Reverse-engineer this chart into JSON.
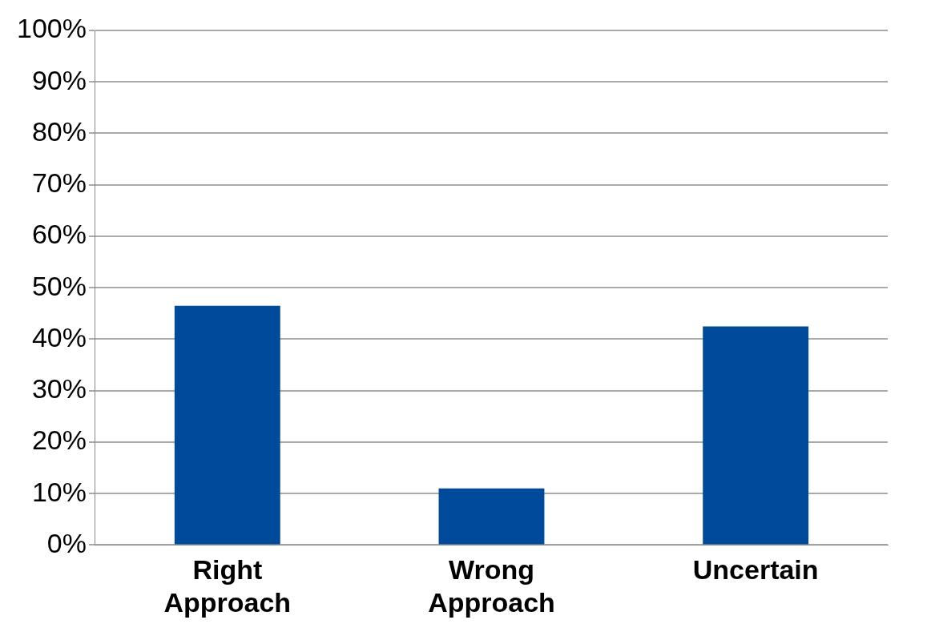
{
  "chart_data": {
    "type": "bar",
    "categories": [
      "Right Approach",
      "Wrong Approach",
      "Uncertain"
    ],
    "values": [
      46.5,
      11,
      42.5
    ],
    "color": "#004a9c",
    "ylim": [
      0,
      100
    ],
    "yticks": [
      {
        "value": 0,
        "label": "0%"
      },
      {
        "value": 10,
        "label": "10%"
      },
      {
        "value": 20,
        "label": "20%"
      },
      {
        "value": 30,
        "label": "30%"
      },
      {
        "value": 40,
        "label": "40%"
      },
      {
        "value": 50,
        "label": "50%"
      },
      {
        "value": 60,
        "label": "60%"
      },
      {
        "value": 70,
        "label": "70%"
      },
      {
        "value": 80,
        "label": "80%"
      },
      {
        "value": 90,
        "label": "90%"
      },
      {
        "value": 100,
        "label": "100%"
      }
    ],
    "grid": "y"
  }
}
